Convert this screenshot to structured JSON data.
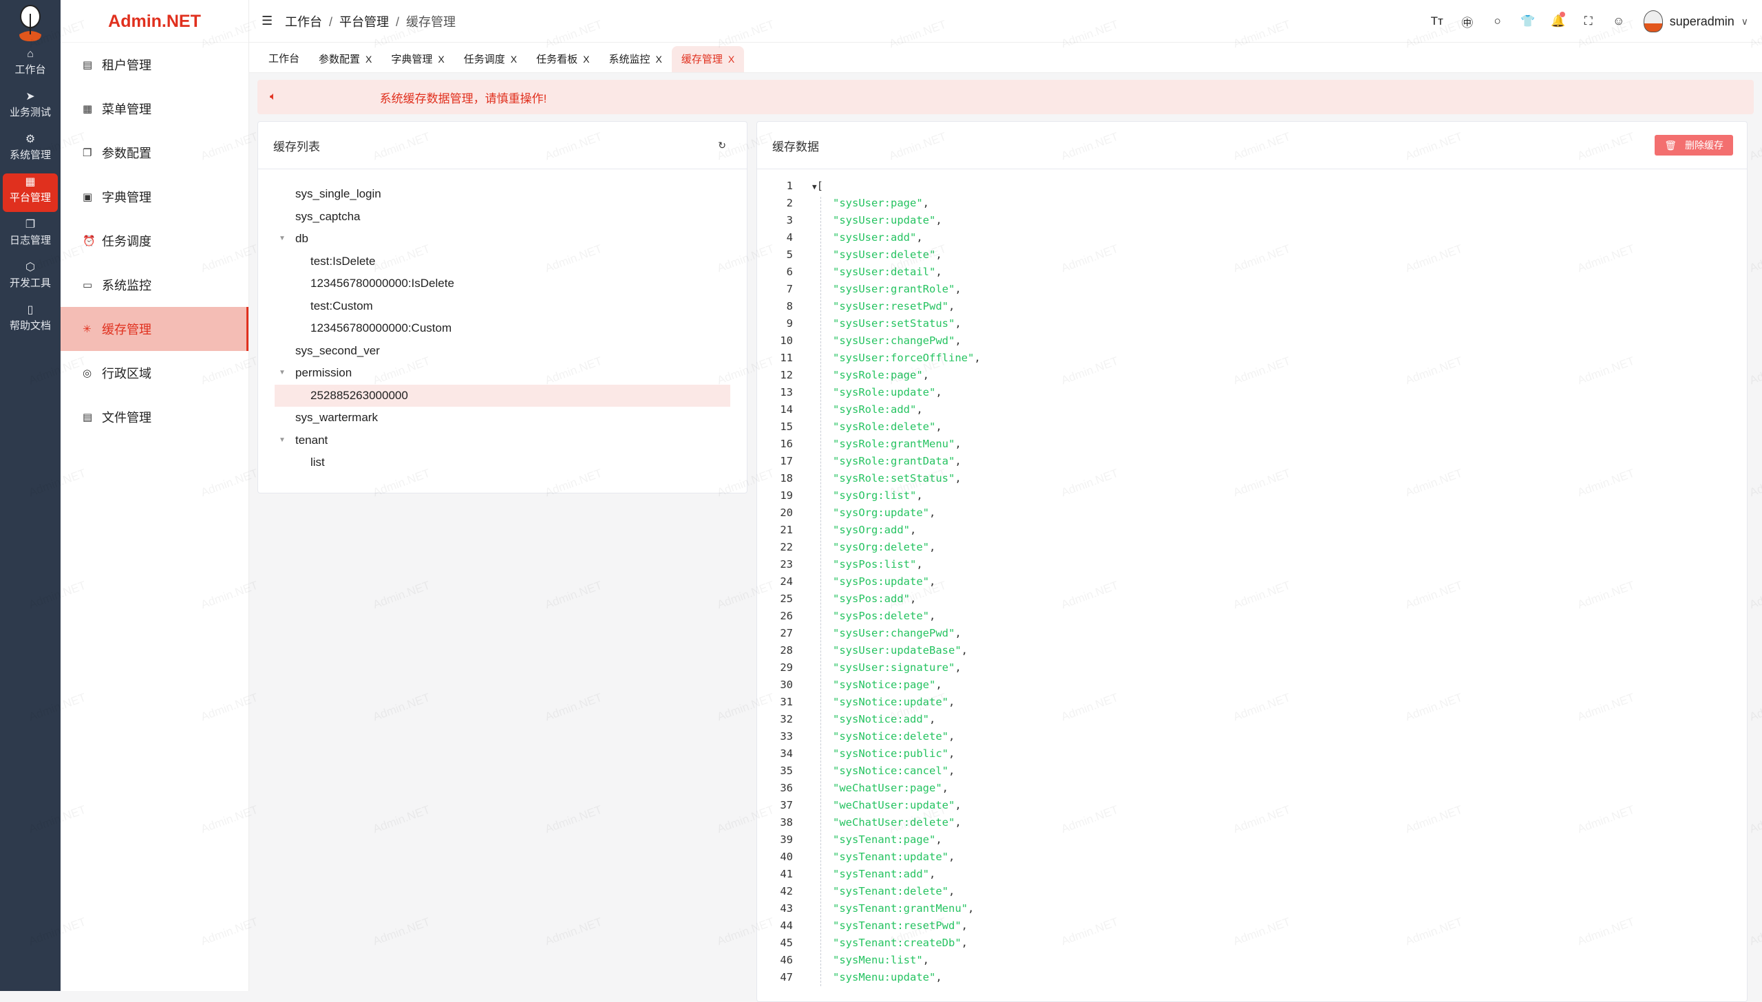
{
  "brand": "Admin.NET",
  "watermark": "Admin.NET",
  "rail": [
    {
      "label": "工作台",
      "icon": "home-icon",
      "glyph": "⌂"
    },
    {
      "label": "业务测试",
      "icon": "send-icon",
      "glyph": "➤"
    },
    {
      "label": "系统管理",
      "icon": "gear-icon",
      "glyph": "⚙"
    },
    {
      "label": "平台管理",
      "icon": "grid-icon",
      "glyph": "▦",
      "active": true
    },
    {
      "label": "日志管理",
      "icon": "copy-icon",
      "glyph": "❐"
    },
    {
      "label": "开发工具",
      "icon": "chip-icon",
      "glyph": "⬡"
    },
    {
      "label": "帮助文档",
      "icon": "book-icon",
      "glyph": "▯"
    }
  ],
  "menu": [
    {
      "label": "租户管理",
      "icon": "building-icon",
      "glyph": "▤"
    },
    {
      "label": "菜单管理",
      "icon": "grid-icon",
      "glyph": "▦"
    },
    {
      "label": "参数配置",
      "icon": "copy-icon",
      "glyph": "❐"
    },
    {
      "label": "字典管理",
      "icon": "book-icon",
      "glyph": "▣"
    },
    {
      "label": "任务调度",
      "icon": "alarm-clock-icon",
      "glyph": "⏰"
    },
    {
      "label": "系统监控",
      "icon": "monitor-icon",
      "glyph": "▭"
    },
    {
      "label": "缓存管理",
      "icon": "loading-icon",
      "glyph": "✳",
      "active": true
    },
    {
      "label": "行政区域",
      "icon": "location-icon",
      "glyph": "◎"
    },
    {
      "label": "文件管理",
      "icon": "document-icon",
      "glyph": "▤"
    }
  ],
  "breadcrumb": [
    "工作台",
    "平台管理",
    "缓存管理"
  ],
  "user": {
    "name": "superadmin"
  },
  "tools": [
    {
      "icon": "font-size-icon",
      "glyph": "Tт"
    },
    {
      "icon": "language-icon",
      "glyph": "㊥"
    },
    {
      "icon": "search-icon",
      "glyph": "○"
    },
    {
      "icon": "theme-shirt-icon",
      "glyph": "👕"
    },
    {
      "icon": "bell-icon",
      "glyph": "🔔",
      "badge": true
    },
    {
      "icon": "fullscreen-icon",
      "glyph": "⛶"
    },
    {
      "icon": "user-icon",
      "glyph": "☺"
    }
  ],
  "tabs": [
    {
      "label": "工作台",
      "closable": false
    },
    {
      "label": "参数配置",
      "closable": true
    },
    {
      "label": "字典管理",
      "closable": true
    },
    {
      "label": "任务调度",
      "closable": true
    },
    {
      "label": "任务看板",
      "closable": true
    },
    {
      "label": "系统监控",
      "closable": true
    },
    {
      "label": "缓存管理",
      "closable": true,
      "active": true
    }
  ],
  "close_glyph": "X",
  "alert": "系统缓存数据管理，请慎重操作!",
  "cache_list": {
    "title": "缓存列表",
    "nodes": [
      {
        "label": "sys_single_login",
        "level": 0
      },
      {
        "label": "sys_captcha",
        "level": 0
      },
      {
        "label": "db",
        "level": 0,
        "expanded": true
      },
      {
        "label": "test:IsDelete",
        "level": 1
      },
      {
        "label": "123456780000000:IsDelete",
        "level": 1
      },
      {
        "label": "test:Custom",
        "level": 1
      },
      {
        "label": "123456780000000:Custom",
        "level": 1
      },
      {
        "label": "sys_second_ver",
        "level": 0
      },
      {
        "label": "permission",
        "level": 0,
        "expanded": true
      },
      {
        "label": "252885263000000",
        "level": 1,
        "selected": true
      },
      {
        "label": "sys_wartermark",
        "level": 0
      },
      {
        "label": "tenant",
        "level": 0,
        "expanded": true
      },
      {
        "label": "list",
        "level": 1
      }
    ]
  },
  "cache_data": {
    "title": "缓存数据",
    "delete_label": "删除缓存",
    "open_bracket": "[",
    "items": [
      "sysUser:page",
      "sysUser:update",
      "sysUser:add",
      "sysUser:delete",
      "sysUser:detail",
      "sysUser:grantRole",
      "sysUser:resetPwd",
      "sysUser:setStatus",
      "sysUser:changePwd",
      "sysUser:forceOffline",
      "sysRole:page",
      "sysRole:update",
      "sysRole:add",
      "sysRole:delete",
      "sysRole:grantMenu",
      "sysRole:grantData",
      "sysRole:setStatus",
      "sysOrg:list",
      "sysOrg:update",
      "sysOrg:add",
      "sysOrg:delete",
      "sysPos:list",
      "sysPos:update",
      "sysPos:add",
      "sysPos:delete",
      "sysUser:changePwd",
      "sysUser:updateBase",
      "sysUser:signature",
      "sysNotice:page",
      "sysNotice:update",
      "sysNotice:add",
      "sysNotice:delete",
      "sysNotice:public",
      "sysNotice:cancel",
      "weChatUser:page",
      "weChatUser:update",
      "weChatUser:delete",
      "sysTenant:page",
      "sysTenant:update",
      "sysTenant:add",
      "sysTenant:delete",
      "sysTenant:grantMenu",
      "sysTenant:resetPwd",
      "sysTenant:createDb",
      "sysMenu:list",
      "sysMenu:update"
    ]
  },
  "colors": {
    "accent": "#e0301e",
    "rail": "#2e3a4c",
    "json_string": "#26c361",
    "alert_bg": "#fbe8e6"
  }
}
